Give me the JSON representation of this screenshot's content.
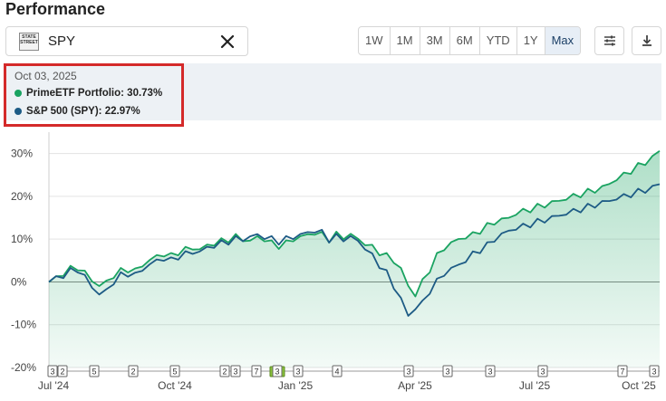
{
  "header": {
    "title": "Performance"
  },
  "search": {
    "ticker": "SPY",
    "logo_text": "STATE STREET"
  },
  "ranges": [
    {
      "label": "1W",
      "active": false
    },
    {
      "label": "1M",
      "active": false
    },
    {
      "label": "3M",
      "active": false
    },
    {
      "label": "6M",
      "active": false
    },
    {
      "label": "YTD",
      "active": false
    },
    {
      "label": "1Y",
      "active": false
    },
    {
      "label": "Max",
      "active": true
    }
  ],
  "toolbar": {
    "settings_icon": "sliders-icon",
    "download_icon": "download-icon"
  },
  "tooltip": {
    "date": "Oct 03, 2025",
    "rows": [
      {
        "label": "PrimeETF Portfolio: 30.73%",
        "color": "#1aa361"
      },
      {
        "label": "S&P 500 (SPY): 22.97%",
        "color": "#1d5b85"
      }
    ]
  },
  "chart_data": {
    "type": "line",
    "yticks": [
      "30%",
      "20%",
      "10%",
      "0%",
      "-10%",
      "-20%"
    ],
    "ylim": [
      -20,
      35
    ],
    "x_axis_labels": [
      "Jul '24",
      "Oct '24",
      "Jan '25",
      "Apr '25",
      "Jul '25",
      "Oct '25"
    ],
    "series": [
      {
        "name": "PrimeETF Portfolio",
        "color": "#1aa361",
        "values": [
          0,
          1,
          2,
          3,
          3.5,
          2,
          0.5,
          -1,
          0,
          1.5,
          2.5,
          3,
          2.5,
          4,
          5,
          6,
          6.5,
          6,
          7,
          7.5,
          8,
          7.5,
          8.5,
          9,
          9.5,
          10,
          10.5,
          10,
          9.5,
          10.5,
          10,
          9,
          8.5,
          9,
          10,
          10.5,
          11,
          11.5,
          11,
          10,
          11,
          10.5,
          11,
          10,
          9,
          8,
          7,
          6,
          5,
          3,
          -1,
          -3,
          0,
          3,
          6,
          8,
          9,
          10,
          10.5,
          11,
          12,
          13,
          14,
          14.5,
          15,
          16,
          16.5,
          17,
          17.5,
          18,
          18.5,
          19,
          19.5,
          20,
          20.5,
          21,
          21.5,
          22,
          23,
          24,
          25,
          26,
          27,
          28,
          29,
          30.73
        ]
      },
      {
        "name": "S&P 500 (SPY)",
        "color": "#1d5b85",
        "values": [
          0,
          1,
          1.5,
          2.5,
          3,
          1,
          -1,
          -3,
          -2,
          0,
          1.5,
          2,
          1.5,
          3,
          4,
          5,
          5.5,
          5,
          6,
          6.5,
          7,
          7,
          8,
          8.5,
          9,
          9.5,
          10,
          10,
          10.5,
          11,
          10.5,
          10,
          9.5,
          10,
          10.5,
          11,
          11.5,
          12,
          11.5,
          10,
          10.5,
          10,
          10.5,
          9.5,
          8,
          6,
          4,
          2,
          -1,
          -4,
          -8,
          -6,
          -5,
          -2,
          0,
          2,
          3,
          4,
          5,
          6.5,
          7.5,
          8.5,
          10,
          11,
          12,
          12.5,
          13,
          13.5,
          14,
          14.5,
          15,
          15.5,
          16,
          16.5,
          17,
          17.5,
          18,
          18.5,
          19,
          19.5,
          20,
          20.5,
          21,
          21.5,
          22,
          22.97
        ]
      }
    ],
    "events": [
      "3",
      "2",
      "5",
      "2",
      "5",
      "2",
      "3",
      "7",
      "",
      "3",
      "3",
      "4",
      "3",
      "3",
      "3",
      "3",
      "7",
      "3"
    ]
  }
}
